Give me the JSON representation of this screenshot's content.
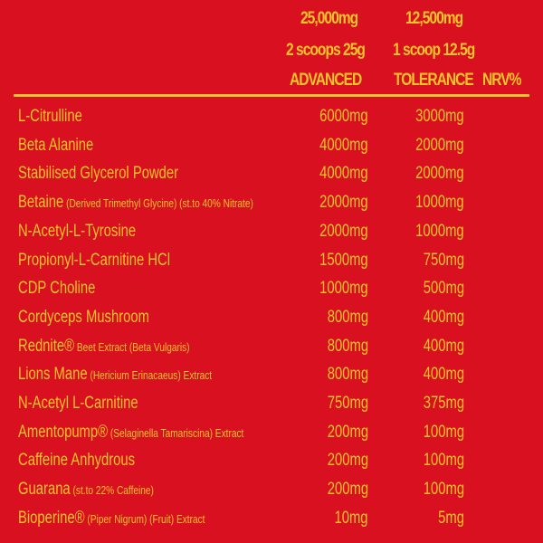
{
  "header": {
    "advanced_total": "25,000mg",
    "tolerance_total": "12,500mg",
    "advanced_serving": "2 scoops 25g",
    "tolerance_serving": "1 scoop 12.5g",
    "advanced_label": "ADVANCED",
    "tolerance_label": "TOLERANCE",
    "nrv_label": "NRV%"
  },
  "colors": {
    "background": "#d8101f",
    "text": "#f6c42a"
  },
  "rows": [
    {
      "name": "L-Citrulline",
      "sub": "",
      "advanced": "6000mg",
      "tolerance": "3000mg"
    },
    {
      "name": "Beta Alanine",
      "sub": "",
      "advanced": "4000mg",
      "tolerance": "2000mg"
    },
    {
      "name": "Stabilised Glycerol Powder",
      "sub": "",
      "advanced": "4000mg",
      "tolerance": "2000mg"
    },
    {
      "name": "Betaine",
      "sub": " (Derived Trimethyl Glycine) (st.to 40% Nitrate)",
      "advanced": "2000mg",
      "tolerance": "1000mg"
    },
    {
      "name": "N-Acetyl-L-Tyrosine",
      "sub": "",
      "advanced": "2000mg",
      "tolerance": "1000mg"
    },
    {
      "name": "Propionyl-L-Carnitine HCl",
      "sub": "",
      "advanced": "1500mg",
      "tolerance": "750mg"
    },
    {
      "name": "CDP Choline",
      "sub": "",
      "advanced": "1000mg",
      "tolerance": "500mg"
    },
    {
      "name": "Cordyceps Mushroom",
      "sub": "",
      "advanced": "800mg",
      "tolerance": "400mg"
    },
    {
      "name": "Rednite®",
      "sub": " Beet Extract (Beta Vulgaris)",
      "advanced": "800mg",
      "tolerance": "400mg"
    },
    {
      "name": "Lions Mane",
      "sub": " (Hericium Erinacaeus) Extract",
      "advanced": "800mg",
      "tolerance": "400mg"
    },
    {
      "name": "N-Acetyl L-Carnitine",
      "sub": "",
      "advanced": "750mg",
      "tolerance": "375mg"
    },
    {
      "name": "Amentopump®",
      "sub": " (Selaginella Tamariscina) Extract",
      "advanced": "200mg",
      "tolerance": "100mg"
    },
    {
      "name": "Caffeine Anhydrous",
      "sub": "",
      "advanced": "200mg",
      "tolerance": "100mg"
    },
    {
      "name": "Guarana",
      "sub": " (st.to 22% Caffeine)",
      "advanced": "200mg",
      "tolerance": "100mg"
    },
    {
      "name": "Bioperine®",
      "sub": " (Piper Nigrum) (Fruit) Extract",
      "advanced": "10mg",
      "tolerance": "5mg"
    }
  ]
}
